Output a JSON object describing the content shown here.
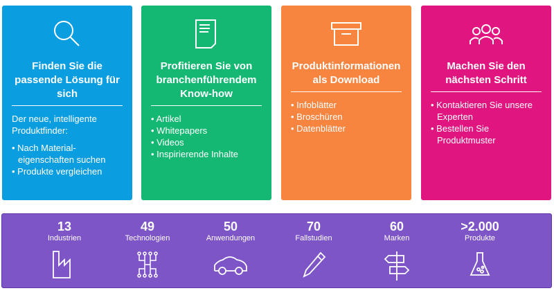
{
  "cards": [
    {
      "title": "Finden Sie die passende Lösung für sich",
      "intro": "Der neue, intelligente Produktfinder:",
      "items": [
        "Nach Material-eigenschaften suchen",
        "Produkte vergleichen"
      ],
      "color": "#0a9de0",
      "icon": "search-icon"
    },
    {
      "title": "Profitieren Sie von branchenführendem Know-how",
      "items": [
        "Artikel",
        "Whitepapers",
        "Videos",
        "Inspirierende Inhalte"
      ],
      "color": "#14b873",
      "icon": "document-icon"
    },
    {
      "title": "Produktinformationen als Download",
      "items": [
        "Infoblätter",
        "Broschüren",
        "Datenblätter"
      ],
      "color": "#f7843f",
      "icon": "box-icon"
    },
    {
      "title": "Machen Sie den nächsten Schritt",
      "items": [
        "Kontaktieren Sie unsere Experten",
        "Bestellen Sie Produktmuster"
      ],
      "color": "#e0157f",
      "icon": "people-icon"
    }
  ],
  "stats": [
    {
      "value": "13",
      "label": "Industrien",
      "icon": "factory-icon"
    },
    {
      "value": "49",
      "label": "Technologien",
      "icon": "circuit-icon"
    },
    {
      "value": "50",
      "label": "Anwendungen",
      "icon": "car-icon"
    },
    {
      "value": "70",
      "label": "Fallstudien",
      "icon": "pen-icon"
    },
    {
      "value": "60",
      "label": "Marken",
      "icon": "signpost-icon"
    },
    {
      "value": ">2.000",
      "label": "Produkte",
      "icon": "flask-icon"
    }
  ],
  "bar_color": "#7e55c7"
}
